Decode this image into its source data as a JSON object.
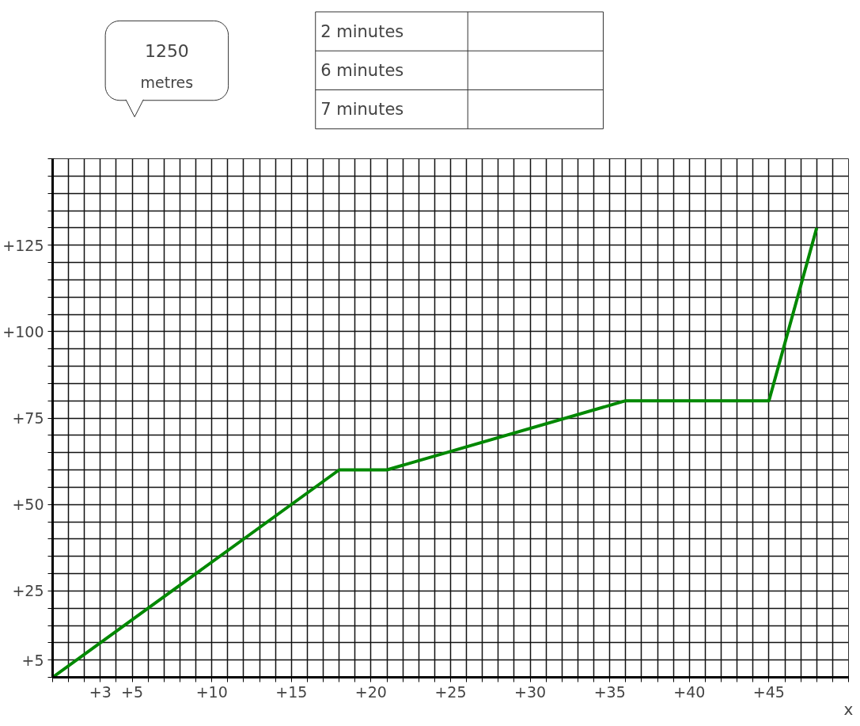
{
  "chart_data": {
    "type": "line",
    "xlabel": "x",
    "annotations": [
      "1250 metres",
      "2 minutes",
      "6 minutes",
      "7 minutes"
    ],
    "x": [
      0,
      18,
      21,
      36,
      45,
      48
    ],
    "series": [
      {
        "color": "#008800",
        "values": [
          0,
          60,
          60,
          80,
          80,
          130
        ]
      }
    ],
    "xlim": [
      0,
      50
    ],
    "ylim": [
      0,
      150
    ],
    "xticks": [
      {
        "value": 0,
        "label": null
      },
      {
        "value": 1,
        "label": null
      },
      {
        "value": 2,
        "label": null
      },
      {
        "value": 3,
        "label": "+3"
      },
      {
        "value": 4,
        "label": null
      },
      {
        "value": 5,
        "label": "+5"
      },
      {
        "value": 6,
        "label": null
      },
      {
        "value": 7,
        "label": null
      },
      {
        "value": 8,
        "label": null
      },
      {
        "value": 9,
        "label": null
      },
      {
        "value": 10,
        "label": "+10"
      },
      {
        "value": 11,
        "label": null
      },
      {
        "value": 12,
        "label": null
      },
      {
        "value": 13,
        "label": null
      },
      {
        "value": 14,
        "label": null
      },
      {
        "value": 15,
        "label": "+15"
      },
      {
        "value": 16,
        "label": null
      },
      {
        "value": 17,
        "label": null
      },
      {
        "value": 18,
        "label": null
      },
      {
        "value": 19,
        "label": null
      },
      {
        "value": 20,
        "label": "+20"
      },
      {
        "value": 21,
        "label": null
      },
      {
        "value": 22,
        "label": null
      },
      {
        "value": 23,
        "label": null
      },
      {
        "value": 24,
        "label": null
      },
      {
        "value": 25,
        "label": "+25"
      },
      {
        "value": 26,
        "label": null
      },
      {
        "value": 27,
        "label": null
      },
      {
        "value": 28,
        "label": null
      },
      {
        "value": 29,
        "label": null
      },
      {
        "value": 30,
        "label": "+30"
      },
      {
        "value": 31,
        "label": null
      },
      {
        "value": 32,
        "label": null
      },
      {
        "value": 33,
        "label": null
      },
      {
        "value": 34,
        "label": null
      },
      {
        "value": 35,
        "label": "+35"
      },
      {
        "value": 36,
        "label": null
      },
      {
        "value": 37,
        "label": null
      },
      {
        "value": 38,
        "label": null
      },
      {
        "value": 39,
        "label": null
      },
      {
        "value": 40,
        "label": "+40"
      },
      {
        "value": 41,
        "label": null
      },
      {
        "value": 42,
        "label": null
      },
      {
        "value": 43,
        "label": null
      },
      {
        "value": 44,
        "label": null
      },
      {
        "value": 45,
        "label": "+45"
      },
      {
        "value": 46,
        "label": null
      },
      {
        "value": 47,
        "label": null
      },
      {
        "value": 48,
        "label": null
      },
      {
        "value": 49,
        "label": null
      },
      {
        "value": 50,
        "label": null
      }
    ],
    "yticks": [
      {
        "value": 0,
        "label": null
      },
      {
        "value": 5,
        "label": "+5"
      },
      {
        "value": 10,
        "label": null
      },
      {
        "value": 15,
        "label": null
      },
      {
        "value": 20,
        "label": null
      },
      {
        "value": 25,
        "label": "+25"
      },
      {
        "value": 30,
        "label": null
      },
      {
        "value": 35,
        "label": null
      },
      {
        "value": 40,
        "label": null
      },
      {
        "value": 45,
        "label": null
      },
      {
        "value": 50,
        "label": "+50"
      },
      {
        "value": 55,
        "label": null
      },
      {
        "value": 60,
        "label": null
      },
      {
        "value": 65,
        "label": null
      },
      {
        "value": 70,
        "label": null
      },
      {
        "value": 75,
        "label": "+75"
      },
      {
        "value": 80,
        "label": null
      },
      {
        "value": 85,
        "label": null
      },
      {
        "value": 90,
        "label": null
      },
      {
        "value": 95,
        "label": null
      },
      {
        "value": 100,
        "label": "+100"
      },
      {
        "value": 105,
        "label": null
      },
      {
        "value": 110,
        "label": null
      },
      {
        "value": 115,
        "label": null
      },
      {
        "value": 120,
        "label": null
      },
      {
        "value": 125,
        "label": "+125"
      },
      {
        "value": 130,
        "label": null
      },
      {
        "value": 135,
        "label": null
      },
      {
        "value": 140,
        "label": null
      },
      {
        "value": 145,
        "label": null
      },
      {
        "value": 150,
        "label": null
      }
    ],
    "grid": true,
    "marker": "none",
    "line_style": "solid"
  }
}
